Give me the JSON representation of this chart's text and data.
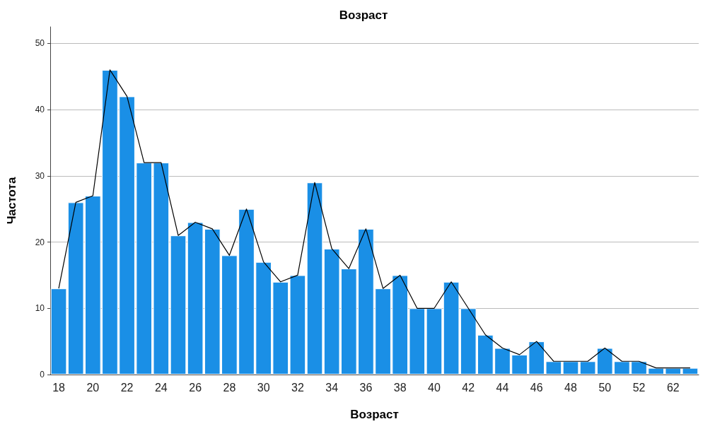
{
  "chart_data": {
    "type": "bar",
    "title": "Возраст",
    "xlabel": "Возраст",
    "ylabel": "Частота",
    "categories": [
      "18",
      null,
      "20",
      null,
      "22",
      null,
      "24",
      null,
      "26",
      null,
      "28",
      null,
      "30",
      null,
      "32",
      null,
      "34",
      null,
      "36",
      null,
      "38",
      null,
      "40",
      null,
      "42",
      null,
      "44",
      null,
      "46",
      null,
      "48",
      null,
      "50",
      null,
      "52",
      null,
      "62",
      null
    ],
    "series": [
      {
        "color": "#1a8fe6",
        "values": [
          13,
          26,
          27,
          46,
          42,
          32,
          32,
          21,
          23,
          22,
          18,
          25,
          17,
          14,
          15,
          29,
          19,
          16,
          22,
          13,
          15,
          10,
          10,
          14,
          10,
          6,
          4,
          3,
          5,
          2,
          2,
          2,
          4,
          2,
          2,
          1,
          1,
          1
        ]
      },
      {
        "type": "line",
        "color": "#000000",
        "values": [
          13,
          26,
          27,
          46,
          42,
          32,
          32,
          21,
          23,
          22,
          18,
          25,
          17,
          14,
          15,
          29,
          19,
          16,
          22,
          13,
          15,
          10,
          10,
          14,
          10,
          6,
          4,
          3,
          5,
          2,
          2,
          2,
          4,
          2,
          2,
          1,
          1,
          1
        ]
      }
    ],
    "ylim": [
      0,
      52.5
    ],
    "yticks": [
      0,
      10,
      20,
      30,
      40,
      50
    ],
    "grid": "y",
    "marker": "none",
    "line_style": "solid"
  }
}
